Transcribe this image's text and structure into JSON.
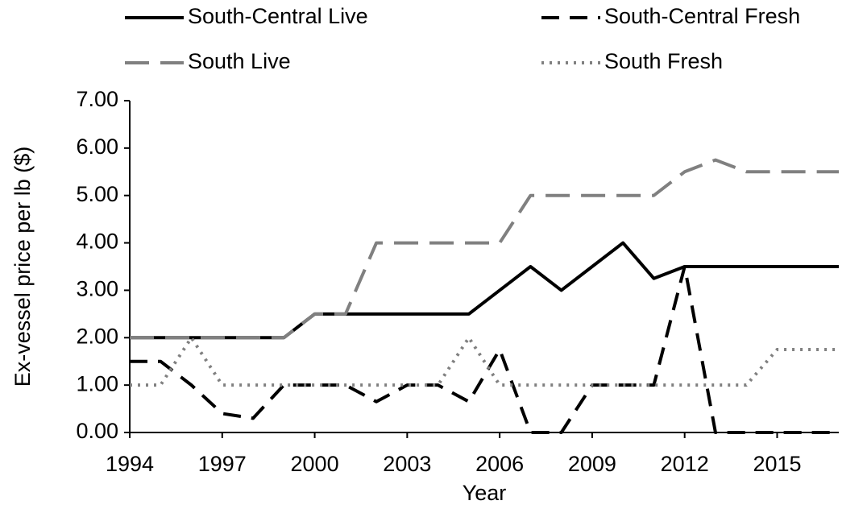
{
  "chart_data": {
    "type": "line",
    "x_label": "Year",
    "y_label": "Ex-vessel price per lb ($)",
    "x": [
      1994,
      1995,
      1996,
      1997,
      1998,
      1999,
      2000,
      2001,
      2002,
      2003,
      2004,
      2005,
      2006,
      2007,
      2008,
      2009,
      2010,
      2011,
      2012,
      2013,
      2014,
      2015,
      2016,
      2017
    ],
    "series": [
      {
        "name": "South-Central Live",
        "color": "#000000",
        "values": [
          2,
          2,
          2,
          2,
          2,
          2,
          2.5,
          2.5,
          2.5,
          2.5,
          2.5,
          2.5,
          3,
          3.5,
          3,
          3.5,
          4,
          3.25,
          3.5,
          3.5,
          3.5,
          3.5,
          3.5,
          3.5
        ]
      },
      {
        "name": "South-Central Fresh",
        "color": "#000000",
        "values": [
          1.5,
          1.5,
          1,
          0.4,
          0.3,
          1,
          1,
          1,
          0.65,
          1,
          1,
          0.65,
          1.75,
          0,
          0,
          1,
          1,
          1,
          3.5,
          0,
          0,
          0,
          0,
          0
        ]
      },
      {
        "name": "South Live",
        "color": "#808080",
        "values": [
          2,
          2,
          2,
          2,
          2,
          2,
          2.5,
          2.5,
          4,
          4,
          4,
          4,
          4,
          5,
          5,
          5,
          5,
          5,
          5.5,
          5.75,
          5.5,
          5.5,
          5.5,
          5.5
        ]
      },
      {
        "name": "South Fresh",
        "color": "#808080",
        "values": [
          1,
          1,
          2,
          1,
          1,
          1,
          1,
          1,
          1,
          1,
          1,
          2,
          1,
          1,
          1,
          1,
          1,
          1,
          1,
          1,
          1,
          1.75,
          1.75,
          1.75
        ]
      }
    ],
    "xlim": [
      1994,
      2017
    ],
    "xticks": [
      1994,
      1997,
      2000,
      2003,
      2006,
      2009,
      2012,
      2015
    ],
    "ylim": [
      0,
      7
    ],
    "yticks": [
      {
        "value": 0,
        "label": "0.00"
      },
      {
        "value": 1,
        "label": "1.00"
      },
      {
        "value": 2,
        "label": "2.00"
      },
      {
        "value": 3,
        "label": "3.00"
      },
      {
        "value": 4,
        "label": "4.00"
      },
      {
        "value": 5,
        "label": "5.00"
      },
      {
        "value": 6,
        "label": "6.00"
      },
      {
        "value": 7,
        "label": "7.00"
      }
    ],
    "grid": false,
    "legend": "top"
  }
}
